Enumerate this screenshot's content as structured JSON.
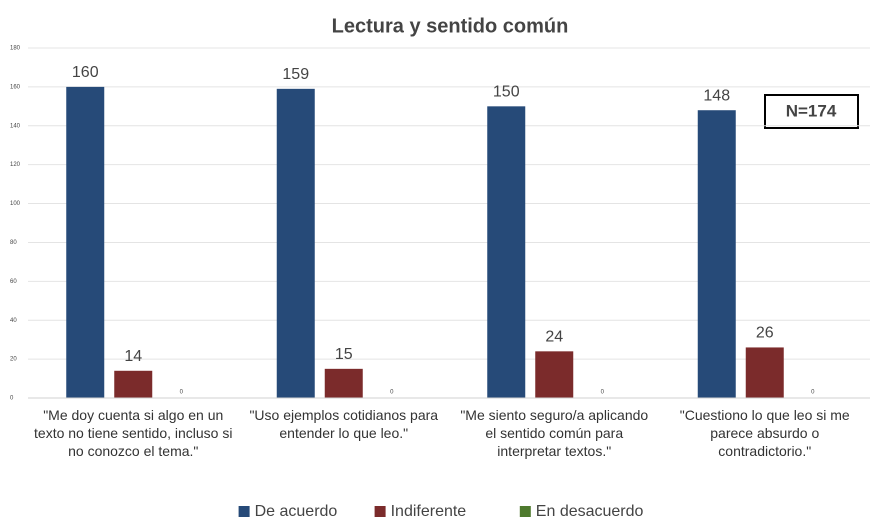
{
  "chart_data": {
    "type": "bar",
    "title": "Lectura y sentido común",
    "categories": [
      "\"Me doy cuenta si algo en un texto no tiene sentido, incluso si no conozco el tema.\"",
      "\"Uso ejemplos cotidianos para entender lo que leo.\"",
      "\"Me siento seguro/a aplicando el sentido común para interpretar textos.\"",
      "\"Cuestiono lo que leo si me parece absurdo o contradictorio.\""
    ],
    "series": [
      {
        "name": "De acuerdo",
        "color": "#264a78",
        "values": [
          160,
          159,
          150,
          148
        ]
      },
      {
        "name": "Indiferente",
        "color": "#7b2b2b",
        "values": [
          14,
          15,
          24,
          26
        ]
      },
      {
        "name": "En desacuerdo",
        "color": "#4e7a2e",
        "values": [
          0,
          0,
          0,
          0
        ]
      }
    ],
    "ylim": [
      0,
      180
    ],
    "yticks": [
      0,
      20,
      40,
      60,
      80,
      100,
      120,
      140,
      160,
      180
    ],
    "grid": true,
    "annotation": "N=174",
    "legend": "bottom"
  }
}
